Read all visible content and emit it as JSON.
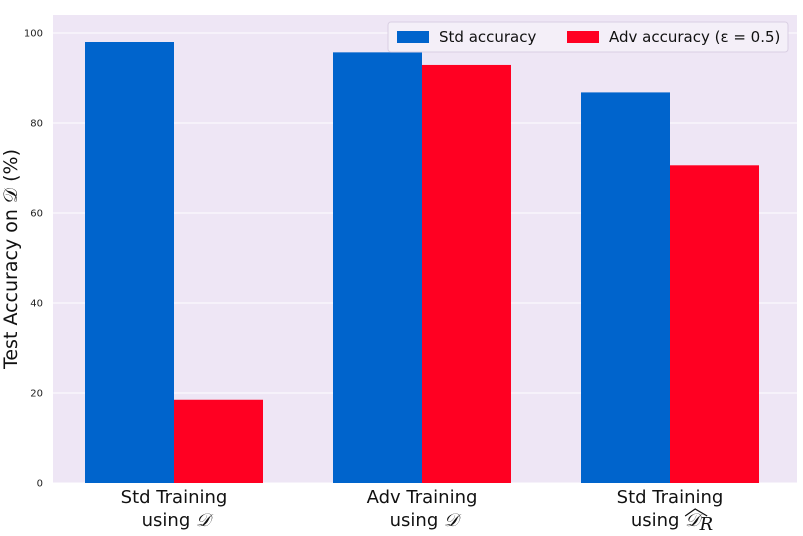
{
  "chart_data": {
    "type": "bar",
    "title": "",
    "categories": [
      {
        "line1": "Std Training",
        "line2_text": "using",
        "line2_math": "𝒟",
        "hat": false
      },
      {
        "line1": "Adv Training",
        "line2_text": "using",
        "line2_math": "𝒟",
        "hat": false
      },
      {
        "line1": "Std Training",
        "line2_text": "using",
        "line2_math": "𝒟",
        "subscript": "R",
        "hat": true
      }
    ],
    "series": [
      {
        "name": "Std accuracy",
        "color": "#0064cc",
        "values": [
          98.0,
          95.7,
          86.8
        ]
      },
      {
        "name": "Adv accuracy (ε = 0.5)",
        "color": "#ff0022",
        "values": [
          18.5,
          92.9,
          70.6
        ]
      }
    ],
    "ylabel": "Test Accuracy on 𝒟 (%)",
    "ylim": [
      0,
      104
    ],
    "yticks": [
      0,
      20,
      40,
      60,
      80,
      100
    ],
    "grid": true,
    "legend_position": "top-right",
    "plot_background": "#eee6f5",
    "grid_color": "#ffffff"
  }
}
